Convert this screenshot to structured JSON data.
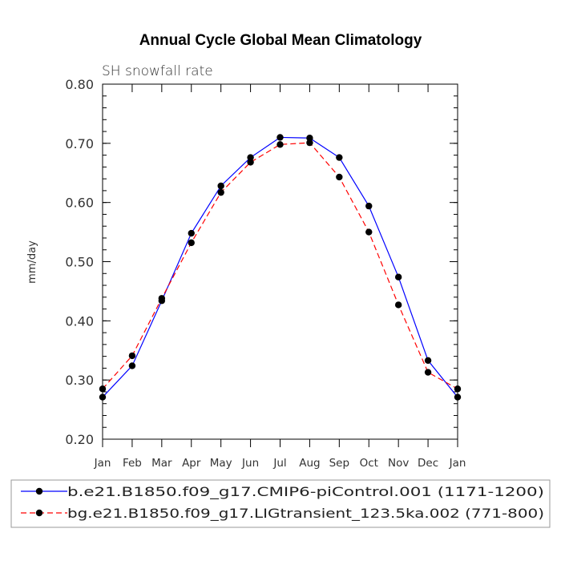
{
  "chart_data": {
    "type": "line",
    "title": "Annual Cycle Global Mean Climatology",
    "subtitle": "SH snowfall rate",
    "xlabel": "",
    "ylabel": "mm/day",
    "categories": [
      "Jan",
      "Feb",
      "Mar",
      "Apr",
      "May",
      "Jun",
      "Jul",
      "Aug",
      "Sep",
      "Oct",
      "Nov",
      "Dec",
      "Jan"
    ],
    "ylim": [
      0.2,
      0.8
    ],
    "yticks": [
      "0.20",
      "0.30",
      "0.40",
      "0.50",
      "0.60",
      "0.70",
      "0.80"
    ],
    "grid": false,
    "legend_position": "bottom",
    "series": [
      {
        "name": "b.e21.B1850.f09_g17.CMIP6-piControl.001 (1171-1200)",
        "color": "#0000ff",
        "line_style": "solid",
        "values": [
          0.271,
          0.324,
          0.434,
          0.548,
          0.628,
          0.676,
          0.71,
          0.709,
          0.676,
          0.594,
          0.474,
          0.333,
          0.271
        ]
      },
      {
        "name": "bg.e21.B1850.f09_g17.LIGtransient_123.5ka.002 (771-800)",
        "color": "#ff0000",
        "line_style": "dashed",
        "values": [
          0.285,
          0.341,
          0.438,
          0.532,
          0.617,
          0.668,
          0.698,
          0.701,
          0.643,
          0.55,
          0.427,
          0.313,
          0.285
        ]
      }
    ]
  }
}
